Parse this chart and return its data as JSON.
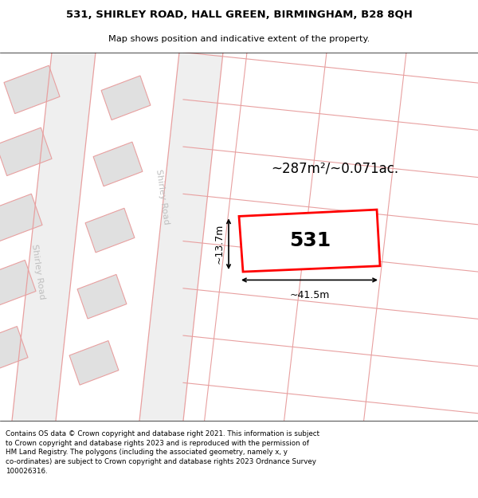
{
  "title_line1": "531, SHIRLEY ROAD, HALL GREEN, BIRMINGHAM, B28 8QH",
  "title_line2": "Map shows position and indicative extent of the property.",
  "footer_text": "Contains OS data © Crown copyright and database right 2021. This information is subject\nto Crown copyright and database rights 2023 and is reproduced with the permission of\nHM Land Registry. The polygons (including the associated geometry, namely x, y\nco-ordinates) are subject to Crown copyright and database rights 2023 Ordnance Survey\n100026316.",
  "bg_color": "#ffffff",
  "road_fill": "#efefef",
  "road_outline": "#e8a0a0",
  "building_fill": "#e0e0e0",
  "building_outline": "#e8a0a0",
  "property_fill": "#ffffff",
  "property_outline": "#ff0000",
  "area_text": "~287m²/~0.071ac.",
  "width_text": "~41.5m",
  "height_text": "~13.7m",
  "number_text": "531",
  "road_label_right": "Shirley Road",
  "road_label_left": "Shirley Road"
}
